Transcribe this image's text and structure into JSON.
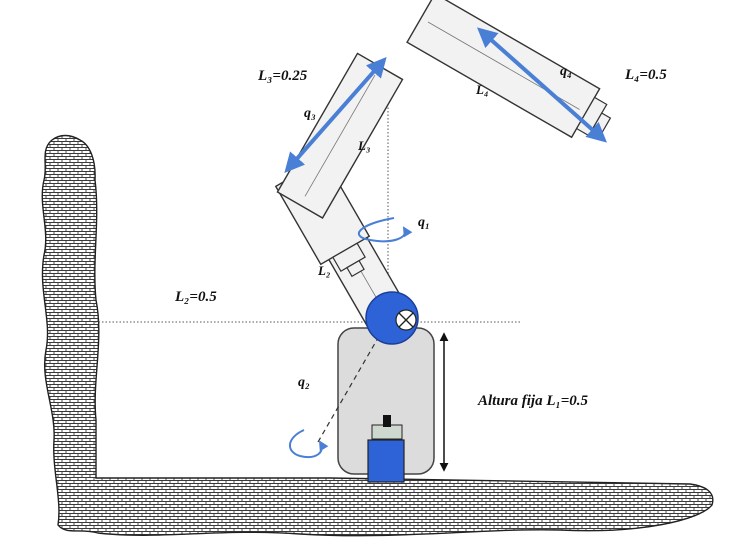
{
  "labels": {
    "L3_length": "L₃=0.25",
    "L4_length": "L₄=0.5",
    "L2_length": "L₂=0.5",
    "height": "Altura fija L₁=0.5",
    "q1": "q₁",
    "q2": "q₂",
    "q3": "q₃",
    "q4": "q₄",
    "L2_link": "L₂",
    "L3_link": "L₃",
    "L4_link": "L₄"
  },
  "colors": {
    "arrow_blue": "#4a7fd6",
    "joint_blue": "#2d63d6",
    "link_fill": "#f2f2f2",
    "base_fill": "#dcdcdc",
    "hatch": "#444444"
  }
}
